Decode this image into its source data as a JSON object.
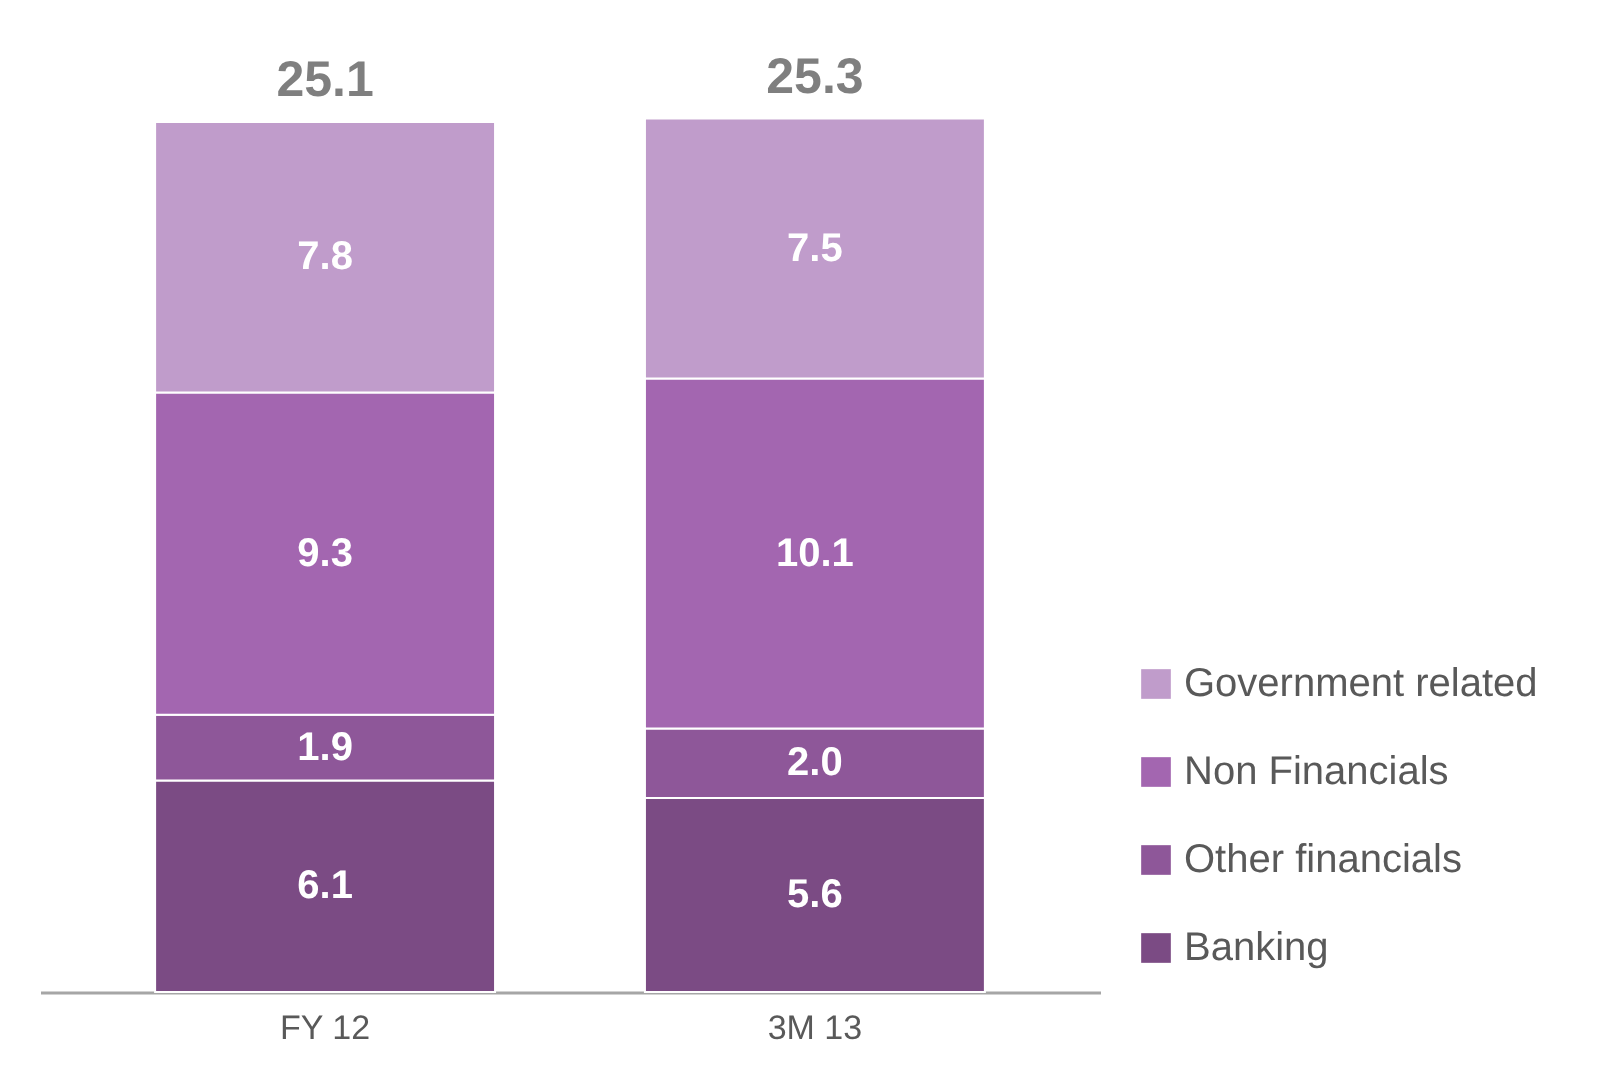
{
  "chart_data": {
    "type": "bar",
    "stacked": true,
    "categories": [
      "FY 12",
      "3M 13"
    ],
    "series": [
      {
        "name": "Banking",
        "color": "#7b4b84",
        "values": [
          6.1,
          5.6
        ],
        "value_labels": [
          "6.1",
          "5.6"
        ]
      },
      {
        "name": "Other financials",
        "color": "#8e5799",
        "values": [
          1.9,
          2.0
        ],
        "value_labels": [
          "1.9",
          "2.0"
        ]
      },
      {
        "name": "Non Financials",
        "color": "#a366b0",
        "values": [
          9.3,
          10.1
        ],
        "value_labels": [
          "9.3",
          "10.1"
        ]
      },
      {
        "name": "Government related",
        "color": "#c09ccb",
        "values": [
          7.8,
          7.5
        ],
        "value_labels": [
          "7.8",
          "7.5"
        ]
      }
    ],
    "totals": [
      "25.1",
      "25.3"
    ],
    "legend": "right"
  }
}
